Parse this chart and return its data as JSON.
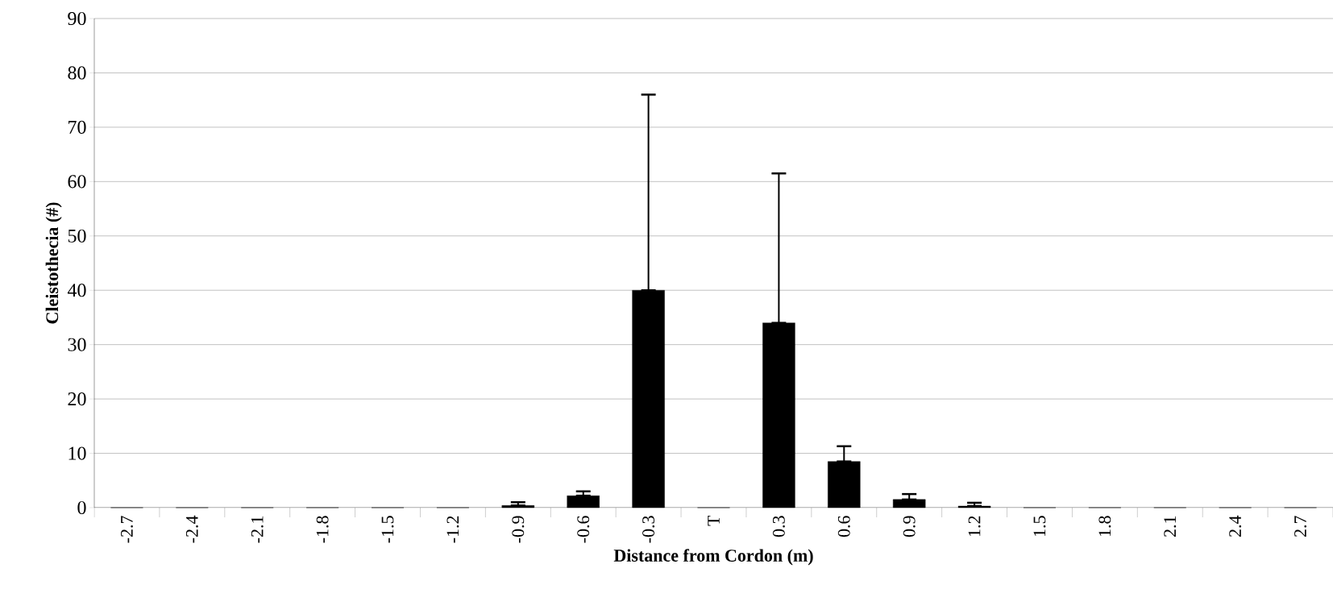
{
  "chart_data": {
    "type": "bar",
    "xlabel": "Distance from Cordon (m)",
    "ylabel": "Cleistothecia (#)",
    "categories": [
      "-2.7",
      "-2.4",
      "-2.1",
      "-1.8",
      "-1.5",
      "-1.2",
      "-0.9",
      "-0.6",
      "-0.3",
      "T",
      "0.3",
      "0.6",
      "0.9",
      "1.2",
      "1.5",
      "1.8",
      "2.1",
      "2.4",
      "2.7"
    ],
    "values": [
      0,
      0,
      0,
      0,
      0,
      0,
      0.4,
      2.2,
      40,
      0,
      34,
      8.5,
      1.5,
      0.3,
      0,
      0,
      0,
      0,
      0
    ],
    "errors": [
      null,
      null,
      null,
      null,
      null,
      null,
      [
        0.4,
        1
      ],
      [
        2.2,
        3
      ],
      [
        40,
        76
      ],
      null,
      [
        34,
        61.5
      ],
      [
        8.5,
        11.3
      ],
      [
        1.5,
        2.5
      ],
      [
        0.3,
        0.9
      ],
      null,
      null,
      null,
      null,
      null
    ],
    "color": "#000000",
    "ylim": [
      0,
      90
    ],
    "yticks": [
      0,
      10,
      20,
      30,
      40,
      50,
      60,
      70,
      80,
      90
    ],
    "grid": "y"
  }
}
